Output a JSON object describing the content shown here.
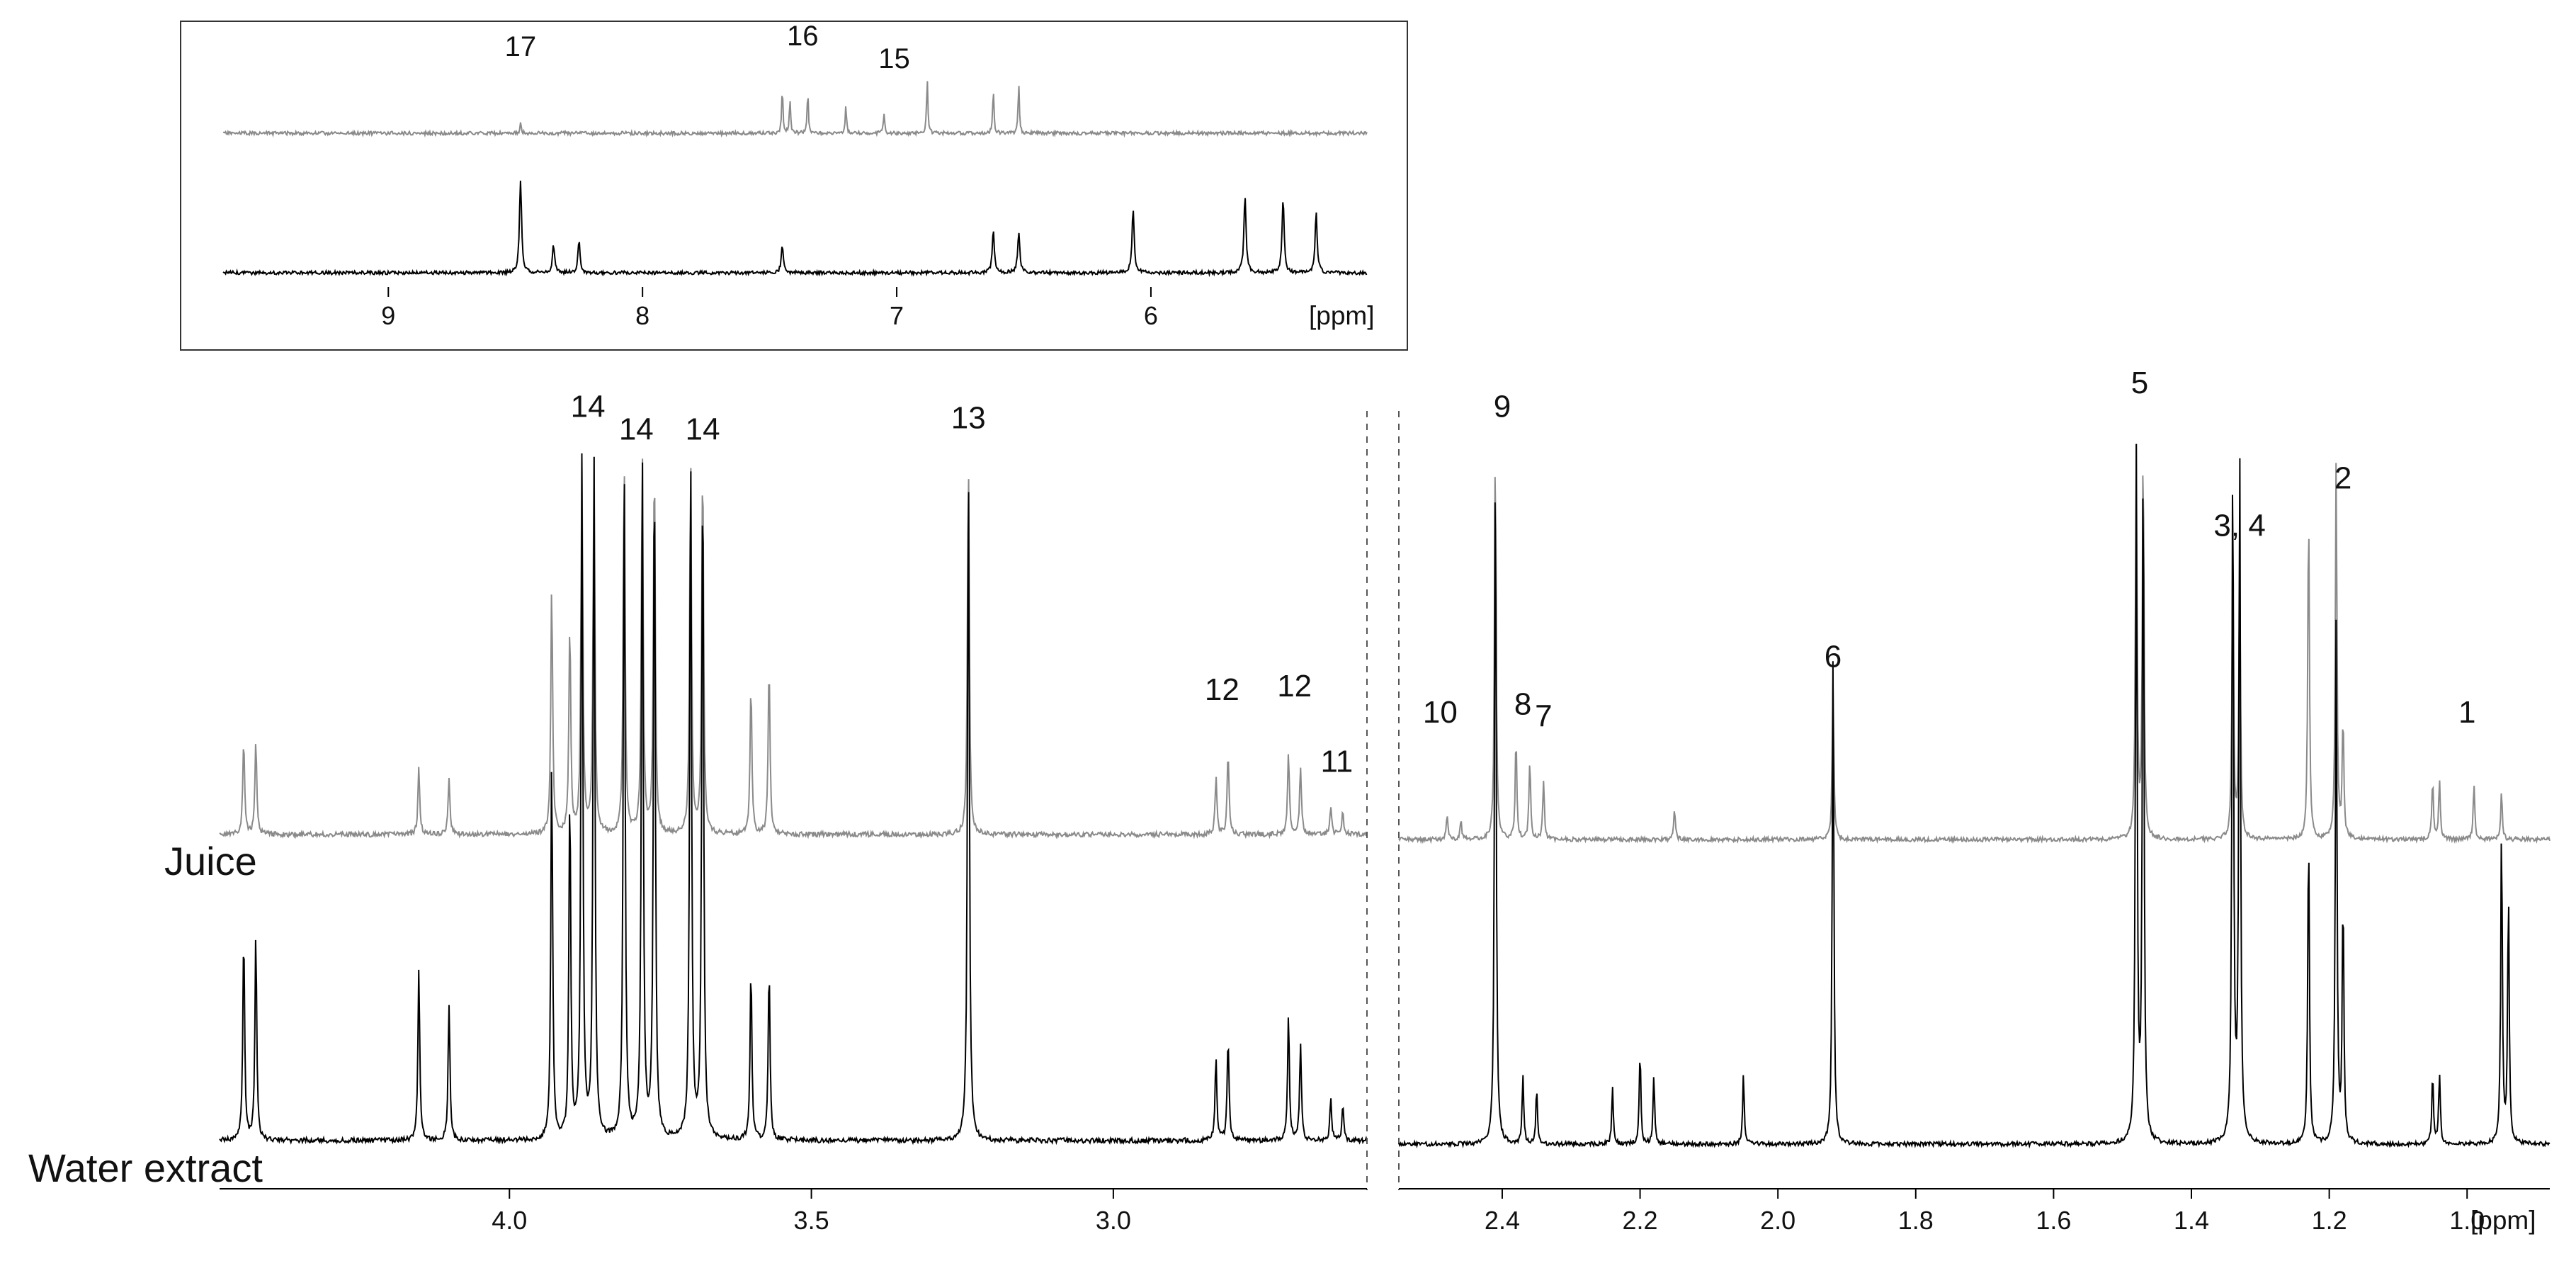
{
  "chart_data": {
    "type": "line",
    "unit_label": "[ppm]",
    "series": [
      {
        "name": "Juice",
        "color": "#8a8a8a"
      },
      {
        "name": "Water extract",
        "color": "#000000"
      }
    ],
    "inset": {
      "x_range": [
        9.65,
        5.15
      ],
      "ticks": [
        9,
        8,
        7,
        6
      ],
      "juice_peaks": [
        {
          "ppm": 8.48,
          "h": 0.15
        },
        {
          "ppm": 7.45,
          "h": 0.6
        },
        {
          "ppm": 7.42,
          "h": 0.45
        },
        {
          "ppm": 7.35,
          "h": 0.55
        },
        {
          "ppm": 7.2,
          "h": 0.35
        },
        {
          "ppm": 7.05,
          "h": 0.25
        },
        {
          "ppm": 6.88,
          "h": 0.7
        },
        {
          "ppm": 6.62,
          "h": 0.6
        },
        {
          "ppm": 6.52,
          "h": 0.65
        }
      ],
      "water_peaks": [
        {
          "ppm": 8.48,
          "h": 1.0
        },
        {
          "ppm": 8.35,
          "h": 0.3
        },
        {
          "ppm": 8.25,
          "h": 0.35
        },
        {
          "ppm": 7.45,
          "h": 0.3
        },
        {
          "ppm": 6.62,
          "h": 0.45
        },
        {
          "ppm": 6.52,
          "h": 0.45
        },
        {
          "ppm": 6.07,
          "h": 0.7
        },
        {
          "ppm": 5.63,
          "h": 0.85
        },
        {
          "ppm": 5.48,
          "h": 0.8
        },
        {
          "ppm": 5.35,
          "h": 0.65
        }
      ],
      "annotations": [
        {
          "label": "17",
          "ppm": 8.48,
          "y": 0.88
        },
        {
          "label": "16",
          "ppm": 7.37,
          "y": 1.02
        },
        {
          "label": "15",
          "ppm": 7.01,
          "y": 0.72
        }
      ]
    },
    "left_panel": {
      "x_range": [
        4.48,
        2.58
      ],
      "ticks": [
        4.0,
        3.5,
        3.0
      ],
      "juice_peaks": [
        {
          "ppm": 4.44,
          "h": 0.25
        },
        {
          "ppm": 4.42,
          "h": 0.25
        },
        {
          "ppm": 4.15,
          "h": 0.18
        },
        {
          "ppm": 4.1,
          "h": 0.15
        },
        {
          "ppm": 3.93,
          "h": 0.65
        },
        {
          "ppm": 3.9,
          "h": 0.55
        },
        {
          "ppm": 3.88,
          "h": 1.0
        },
        {
          "ppm": 3.86,
          "h": 1.0
        },
        {
          "ppm": 3.81,
          "h": 1.0
        },
        {
          "ppm": 3.78,
          "h": 1.0
        },
        {
          "ppm": 3.76,
          "h": 1.0
        },
        {
          "ppm": 3.7,
          "h": 1.0
        },
        {
          "ppm": 3.68,
          "h": 1.0
        },
        {
          "ppm": 3.6,
          "h": 0.4
        },
        {
          "ppm": 3.57,
          "h": 0.45
        },
        {
          "ppm": 3.24,
          "h": 1.0
        },
        {
          "ppm": 2.83,
          "h": 0.15
        },
        {
          "ppm": 2.81,
          "h": 0.22
        },
        {
          "ppm": 2.71,
          "h": 0.22
        },
        {
          "ppm": 2.69,
          "h": 0.18
        },
        {
          "ppm": 2.64,
          "h": 0.07
        },
        {
          "ppm": 2.62,
          "h": 0.06
        }
      ],
      "water_peaks": [
        {
          "ppm": 4.44,
          "h": 0.3
        },
        {
          "ppm": 4.42,
          "h": 0.3
        },
        {
          "ppm": 4.15,
          "h": 0.25
        },
        {
          "ppm": 4.1,
          "h": 0.2
        },
        {
          "ppm": 3.93,
          "h": 0.55
        },
        {
          "ppm": 3.9,
          "h": 0.5
        },
        {
          "ppm": 3.88,
          "h": 1.0
        },
        {
          "ppm": 3.86,
          "h": 1.0
        },
        {
          "ppm": 3.81,
          "h": 1.0
        },
        {
          "ppm": 3.78,
          "h": 1.0
        },
        {
          "ppm": 3.76,
          "h": 1.0
        },
        {
          "ppm": 3.7,
          "h": 1.0
        },
        {
          "ppm": 3.68,
          "h": 1.0
        },
        {
          "ppm": 3.6,
          "h": 0.25
        },
        {
          "ppm": 3.57,
          "h": 0.25
        },
        {
          "ppm": 3.24,
          "h": 1.0
        },
        {
          "ppm": 2.83,
          "h": 0.12
        },
        {
          "ppm": 2.81,
          "h": 0.15
        },
        {
          "ppm": 2.71,
          "h": 0.18
        },
        {
          "ppm": 2.69,
          "h": 0.14
        },
        {
          "ppm": 2.64,
          "h": 0.06
        },
        {
          "ppm": 2.62,
          "h": 0.05
        }
      ],
      "annotations": [
        {
          "label": "14",
          "ppm": 3.87,
          "y": 1.08
        },
        {
          "label": "14",
          "ppm": 3.79,
          "y": 1.02
        },
        {
          "label": "14",
          "ppm": 3.68,
          "y": 1.02
        },
        {
          "label": "13",
          "ppm": 3.24,
          "y": 1.05
        },
        {
          "label": "12",
          "ppm": 2.82,
          "y": 0.33
        },
        {
          "label": "12",
          "ppm": 2.7,
          "y": 0.34
        },
        {
          "label": "11",
          "ppm": 2.63,
          "y": 0.14
        }
      ]
    },
    "right_panel": {
      "x_range": [
        2.55,
        0.88
      ],
      "ticks": [
        2.4,
        2.2,
        2.0,
        1.8,
        1.6,
        1.4,
        1.2,
        1.0
      ],
      "juice_peaks": [
        {
          "ppm": 2.48,
          "h": 0.06
        },
        {
          "ppm": 2.46,
          "h": 0.05
        },
        {
          "ppm": 2.41,
          "h": 1.0
        },
        {
          "ppm": 2.38,
          "h": 0.25
        },
        {
          "ppm": 2.36,
          "h": 0.2
        },
        {
          "ppm": 2.34,
          "h": 0.15
        },
        {
          "ppm": 2.15,
          "h": 0.08
        },
        {
          "ppm": 1.92,
          "h": 0.4
        },
        {
          "ppm": 1.48,
          "h": 1.0
        },
        {
          "ppm": 1.47,
          "h": 1.0
        },
        {
          "ppm": 1.34,
          "h": 0.72
        },
        {
          "ppm": 1.33,
          "h": 0.68
        },
        {
          "ppm": 1.23,
          "h": 0.85
        },
        {
          "ppm": 1.19,
          "h": 0.95
        },
        {
          "ppm": 1.18,
          "h": 0.3
        },
        {
          "ppm": 1.05,
          "h": 0.15
        },
        {
          "ppm": 1.04,
          "h": 0.15
        },
        {
          "ppm": 0.99,
          "h": 0.14
        },
        {
          "ppm": 0.95,
          "h": 0.12
        }
      ],
      "water_peaks": [
        {
          "ppm": 2.41,
          "h": 1.0
        },
        {
          "ppm": 2.37,
          "h": 0.1
        },
        {
          "ppm": 2.35,
          "h": 0.08
        },
        {
          "ppm": 2.24,
          "h": 0.08
        },
        {
          "ppm": 2.2,
          "h": 0.13
        },
        {
          "ppm": 2.18,
          "h": 0.1
        },
        {
          "ppm": 2.05,
          "h": 0.1
        },
        {
          "ppm": 1.92,
          "h": 0.7
        },
        {
          "ppm": 1.48,
          "h": 1.0
        },
        {
          "ppm": 1.47,
          "h": 1.0
        },
        {
          "ppm": 1.34,
          "h": 1.0
        },
        {
          "ppm": 1.33,
          "h": 1.0
        },
        {
          "ppm": 1.23,
          "h": 0.45
        },
        {
          "ppm": 1.19,
          "h": 0.75
        },
        {
          "ppm": 1.18,
          "h": 0.35
        },
        {
          "ppm": 1.05,
          "h": 0.1
        },
        {
          "ppm": 1.04,
          "h": 0.1
        },
        {
          "ppm": 0.95,
          "h": 0.45
        },
        {
          "ppm": 0.94,
          "h": 0.35
        }
      ],
      "annotations": [
        {
          "label": "10",
          "ppm": 2.49,
          "y": 0.27
        },
        {
          "label": "9",
          "ppm": 2.4,
          "y": 1.04
        },
        {
          "label": "8",
          "ppm": 2.37,
          "y": 0.29
        },
        {
          "label": "7",
          "ppm": 2.34,
          "y": 0.26
        },
        {
          "label": "6",
          "ppm": 1.92,
          "y": 0.41
        },
        {
          "label": "5",
          "ppm": 1.475,
          "y": 1.1
        },
        {
          "label": "3, 4",
          "ppm": 1.33,
          "y": 0.74
        },
        {
          "label": "2",
          "ppm": 1.18,
          "y": 0.86
        },
        {
          "label": "1",
          "ppm": 1.0,
          "y": 0.27
        }
      ]
    }
  }
}
